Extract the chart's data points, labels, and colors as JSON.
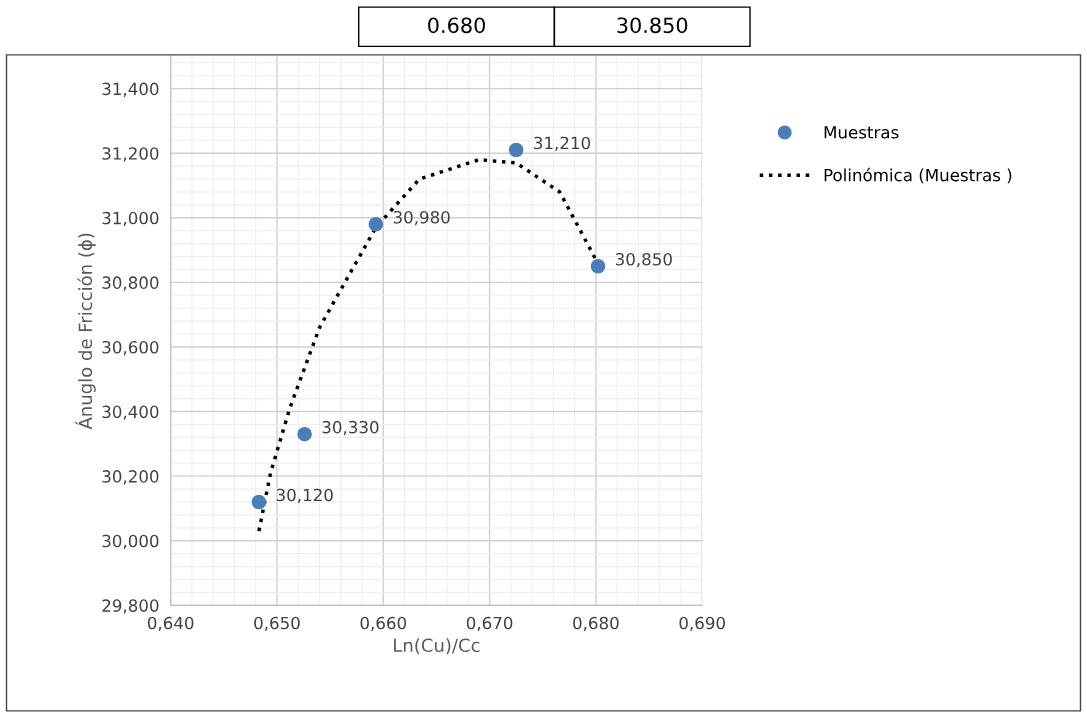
{
  "chart_data": {
    "type": "scatter",
    "xlabel": "Ln(Cu)/Cc",
    "ylabel": "Ánuglo de Fricción (ϕ)",
    "x": [
      0.6483,
      0.6526,
      0.6593,
      0.6725,
      0.6802
    ],
    "series": [
      {
        "name": "Muestras",
        "color": "#4a7ebb",
        "marker": "circle",
        "values": [
          30.12,
          30.33,
          30.98,
          31.21,
          30.85
        ],
        "value_labels": [
          "30,120",
          "30,330",
          "30,980",
          "31,210",
          "30,850"
        ]
      },
      {
        "name": "Polinómica (Muestras )",
        "type": "line",
        "color": "#000000",
        "line_style": "dotted",
        "marker": "none",
        "x": [
          0.6483,
          0.6494,
          0.6512,
          0.654,
          0.6593,
          0.6634,
          0.669,
          0.6725,
          0.6766,
          0.68
        ],
        "values": [
          30.03,
          30.21,
          30.41,
          30.66,
          30.97,
          31.12,
          31.18,
          31.17,
          31.08,
          30.87
        ]
      }
    ],
    "xlim": [
      0.64,
      0.69
    ],
    "xticks": [
      {
        "value": 0.64,
        "label": "0,640"
      },
      {
        "value": 0.65,
        "label": "0,650"
      },
      {
        "value": 0.66,
        "label": "0,660"
      },
      {
        "value": 0.67,
        "label": "0,670"
      },
      {
        "value": 0.68,
        "label": "0,680"
      },
      {
        "value": 0.69,
        "label": "0,690"
      }
    ],
    "ylim": [
      29.8,
      31.5
    ],
    "yticks": [
      {
        "value": 29.8,
        "label": "29,800"
      },
      {
        "value": 30.0,
        "label": "30,000"
      },
      {
        "value": 30.2,
        "label": "30,200"
      },
      {
        "value": 30.4,
        "label": "30,400"
      },
      {
        "value": 30.6,
        "label": "30,600"
      },
      {
        "value": 30.8,
        "label": "30,800"
      },
      {
        "value": 31.0,
        "label": "31,000"
      },
      {
        "value": 31.2,
        "label": "31,200"
      },
      {
        "value": 31.4,
        "label": "31,400"
      }
    ],
    "grid": true,
    "legend": "right",
    "annotations": [
      "0.680",
      "30.850"
    ]
  }
}
